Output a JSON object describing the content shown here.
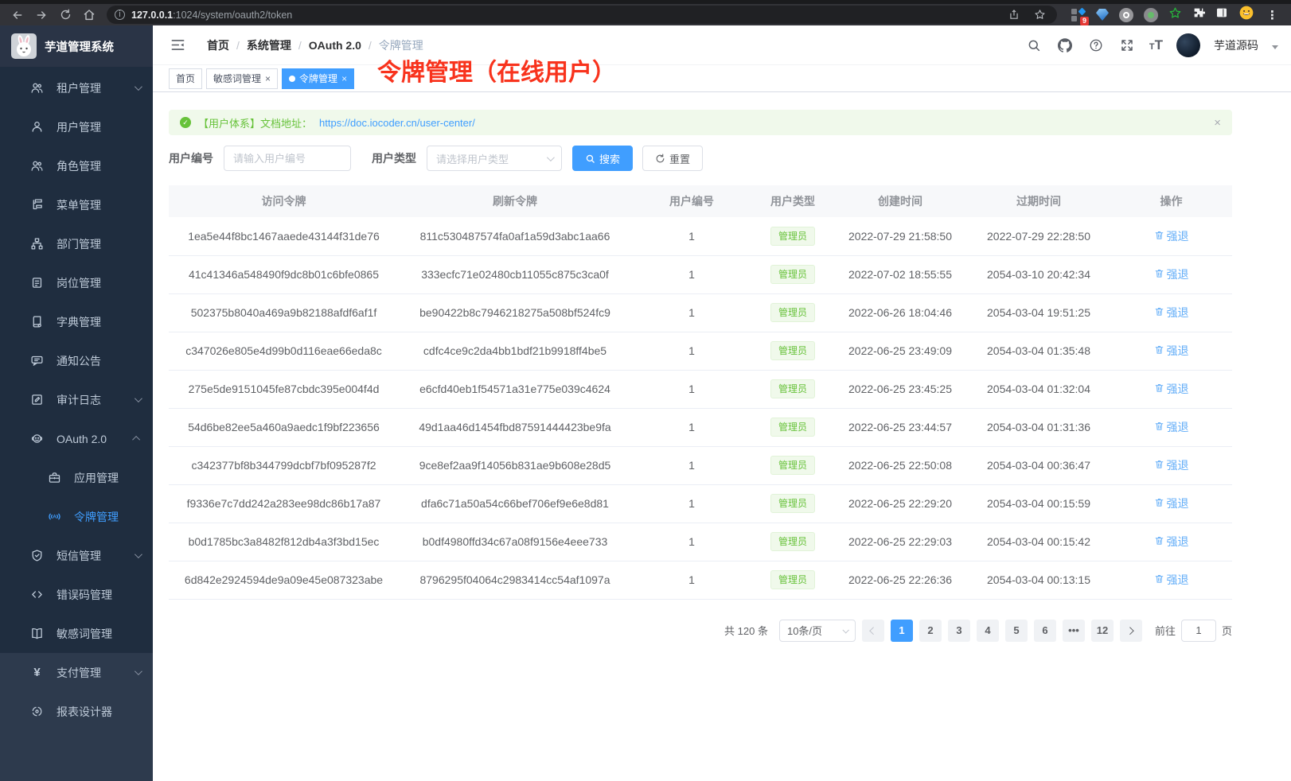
{
  "browser": {
    "url_host": "127.0.0.1",
    "url_path": ":1024/system/oauth2/token",
    "extension_badge": "9"
  },
  "app": {
    "title": "芋道管理系统",
    "user_name": "芋道源码"
  },
  "overlay_title": "令牌管理（在线用户）",
  "breadcrumb": {
    "items": [
      "首页",
      "系统管理",
      "OAuth 2.0",
      "令牌管理"
    ]
  },
  "tabs": {
    "items": [
      {
        "label": "首页",
        "closable": false,
        "active": false
      },
      {
        "label": "敏感词管理",
        "closable": true,
        "active": false
      },
      {
        "label": "令牌管理",
        "closable": true,
        "active": true
      }
    ]
  },
  "sidebar": {
    "items": [
      {
        "label": "租户管理",
        "icon": "tenant-icon",
        "arrow": "down"
      },
      {
        "label": "用户管理",
        "icon": "user-icon"
      },
      {
        "label": "角色管理",
        "icon": "role-icon"
      },
      {
        "label": "菜单管理",
        "icon": "menu-tree-icon"
      },
      {
        "label": "部门管理",
        "icon": "department-icon"
      },
      {
        "label": "岗位管理",
        "icon": "post-icon"
      },
      {
        "label": "字典管理",
        "icon": "dictionary-icon"
      },
      {
        "label": "通知公告",
        "icon": "notice-icon"
      },
      {
        "label": "审计日志",
        "icon": "audit-log-icon",
        "arrow": "down"
      },
      {
        "label": "OAuth 2.0",
        "icon": "oauth-icon",
        "arrow": "up"
      },
      {
        "label": "应用管理",
        "icon": "application-icon",
        "sub": true
      },
      {
        "label": "令牌管理",
        "icon": "token-icon",
        "sub": true,
        "active": true
      },
      {
        "label": "短信管理",
        "icon": "sms-icon",
        "arrow": "down"
      },
      {
        "label": "错误码管理",
        "icon": "error-code-icon"
      },
      {
        "label": "敏感词管理",
        "icon": "sensitive-word-icon"
      },
      {
        "label": "支付管理",
        "icon": "payment-icon",
        "arrow": "down",
        "light": true
      },
      {
        "label": "报表设计器",
        "icon": "report-designer-icon",
        "light": true
      }
    ]
  },
  "alert": {
    "text": "【用户体系】文档地址：",
    "link": "https://doc.iocoder.cn/user-center/",
    "close": "×"
  },
  "filters": {
    "user_id_label": "用户编号",
    "user_id_placeholder": "请输入用户编号",
    "user_type_label": "用户类型",
    "user_type_placeholder": "请选择用户类型",
    "search_label": "搜索",
    "reset_label": "重置"
  },
  "table": {
    "headers": [
      "访问令牌",
      "刷新令牌",
      "用户编号",
      "用户类型",
      "创建时间",
      "过期时间",
      "操作"
    ],
    "action_label": "强退",
    "rows": [
      {
        "access_token": "1ea5e44f8bc1467aaede43144f31de76",
        "refresh_token": "811c530487574fa0af1a59d3abc1aa66",
        "user_id": "1",
        "user_type": "管理员",
        "create_time": "2022-07-29 21:58:50",
        "expire_time": "2022-07-29 22:28:50"
      },
      {
        "access_token": "41c41346a548490f9dc8b01c6bfe0865",
        "refresh_token": "333ecfc71e02480cb11055c875c3ca0f",
        "user_id": "1",
        "user_type": "管理员",
        "create_time": "2022-07-02 18:55:55",
        "expire_time": "2054-03-10 20:42:34"
      },
      {
        "access_token": "502375b8040a469a9b82188afdf6af1f",
        "refresh_token": "be90422b8c7946218275a508bf524fc9",
        "user_id": "1",
        "user_type": "管理员",
        "create_time": "2022-06-26 18:04:46",
        "expire_time": "2054-03-04 19:51:25"
      },
      {
        "access_token": "c347026e805e4d99b0d116eae66eda8c",
        "refresh_token": "cdfc4ce9c2da4bb1bdf21b9918ff4be5",
        "user_id": "1",
        "user_type": "管理员",
        "create_time": "2022-06-25 23:49:09",
        "expire_time": "2054-03-04 01:35:48"
      },
      {
        "access_token": "275e5de9151045fe87cbdc395e004f4d",
        "refresh_token": "e6cfd40eb1f54571a31e775e039c4624",
        "user_id": "1",
        "user_type": "管理员",
        "create_time": "2022-06-25 23:45:25",
        "expire_time": "2054-03-04 01:32:04"
      },
      {
        "access_token": "54d6be82ee5a460a9aedc1f9bf223656",
        "refresh_token": "49d1aa46d1454fbd87591444423be9fa",
        "user_id": "1",
        "user_type": "管理员",
        "create_time": "2022-06-25 23:44:57",
        "expire_time": "2054-03-04 01:31:36"
      },
      {
        "access_token": "c342377bf8b344799dcbf7bf095287f2",
        "refresh_token": "9ce8ef2aa9f14056b831ae9b608e28d5",
        "user_id": "1",
        "user_type": "管理员",
        "create_time": "2022-06-25 22:50:08",
        "expire_time": "2054-03-04 00:36:47"
      },
      {
        "access_token": "f9336e7c7dd242a283ee98dc86b17a87",
        "refresh_token": "dfa6c71a50a54c66bef706ef9e6e8d81",
        "user_id": "1",
        "user_type": "管理员",
        "create_time": "2022-06-25 22:29:20",
        "expire_time": "2054-03-04 00:15:59"
      },
      {
        "access_token": "b0d1785bc3a8482f812db4a3f3bd15ec",
        "refresh_token": "b0df4980ffd34c67a08f9156e4eee733",
        "user_id": "1",
        "user_type": "管理员",
        "create_time": "2022-06-25 22:29:03",
        "expire_time": "2054-03-04 00:15:42"
      },
      {
        "access_token": "6d842e2924594de9a09e45e087323abe",
        "refresh_token": "8796295f04064c2983414cc54af1097a",
        "user_id": "1",
        "user_type": "管理员",
        "create_time": "2022-06-25 22:26:36",
        "expire_time": "2054-03-04 00:13:15"
      }
    ]
  },
  "pagination": {
    "total": "共 120 条",
    "page_size": "10条/页",
    "pages": [
      "1",
      "2",
      "3",
      "4",
      "5",
      "6",
      "...",
      "12"
    ],
    "active_page": "1",
    "goto_label": "前往",
    "goto_value": "1",
    "goto_suffix": "页"
  },
  "colors": {
    "accent": "#409eff",
    "success": "#67c23a",
    "overlay_red": "#f8331d",
    "sidebar_bg": "#1f2d3f"
  }
}
